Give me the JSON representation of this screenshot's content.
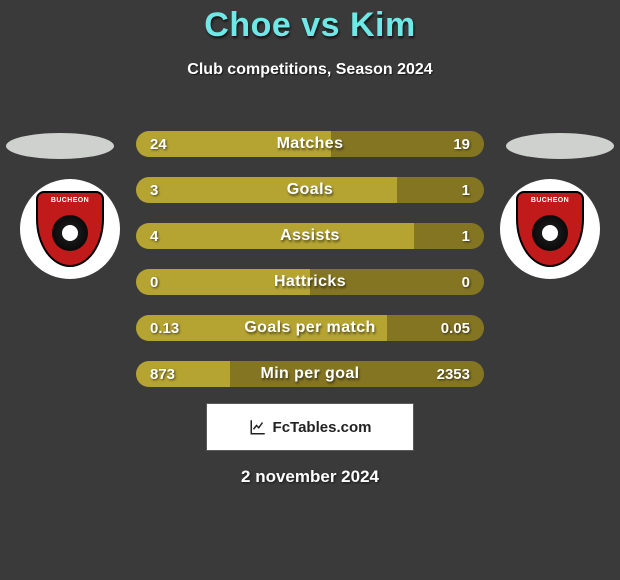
{
  "title": "Choe vs Kim",
  "subtitle": "Club competitions, Season 2024",
  "date": "2 november 2024",
  "colors": {
    "left": "#b5a432",
    "right": "#847523",
    "background": "#3a3a3a",
    "accent": "#6fe8e8",
    "text": "#ffffff"
  },
  "badge": {
    "top_text": "BUCHEON",
    "crest_color": "#c11a1a"
  },
  "rows": [
    {
      "label": "Matches",
      "left_val": "24",
      "right_val": "19",
      "left_pct": 56,
      "right_pct": 44
    },
    {
      "label": "Goals",
      "left_val": "3",
      "right_val": "1",
      "left_pct": 75,
      "right_pct": 25
    },
    {
      "label": "Assists",
      "left_val": "4",
      "right_val": "1",
      "left_pct": 80,
      "right_pct": 20
    },
    {
      "label": "Hattricks",
      "left_val": "0",
      "right_val": "0",
      "left_pct": 50,
      "right_pct": 50
    },
    {
      "label": "Goals per match",
      "left_val": "0.13",
      "right_val": "0.05",
      "left_pct": 72,
      "right_pct": 28
    },
    {
      "label": "Min per goal",
      "left_val": "873",
      "right_val": "2353",
      "left_pct": 27,
      "right_pct": 73
    }
  ],
  "fctables": {
    "text": "FcTables.com"
  }
}
